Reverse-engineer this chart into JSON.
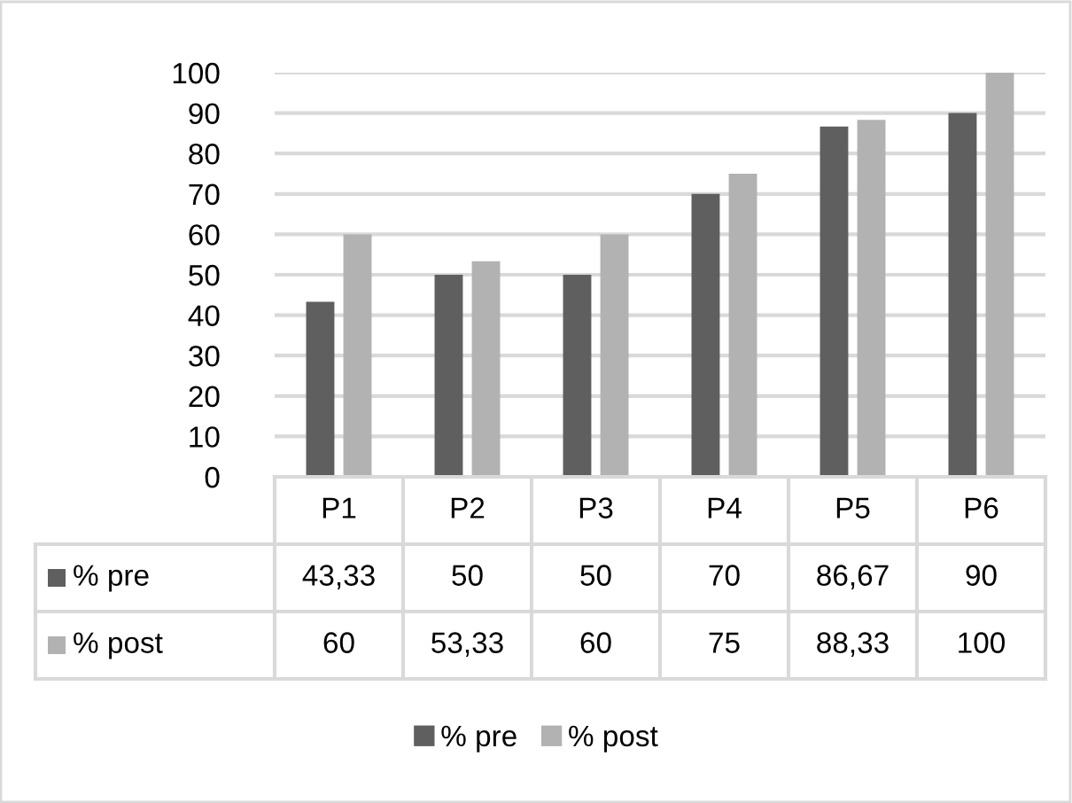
{
  "chart_data": {
    "type": "bar",
    "categories": [
      "P1",
      "P2",
      "P3",
      "P4",
      "P5",
      "P6"
    ],
    "series": [
      {
        "name": "% pre",
        "color": "#5f5f5f",
        "values": [
          43.33,
          50,
          50,
          70,
          86.67,
          90
        ],
        "value_labels": [
          "43,33",
          "50",
          "50",
          "70",
          "86,67",
          "90"
        ]
      },
      {
        "name": "% post",
        "color": "#b2b2b2",
        "values": [
          60,
          53.33,
          60,
          75,
          88.33,
          100
        ],
        "value_labels": [
          "60",
          "53,33",
          "60",
          "75",
          "88,33",
          "100"
        ]
      }
    ],
    "ylim": [
      0,
      100
    ],
    "yticks": [
      0,
      10,
      20,
      30,
      40,
      50,
      60,
      70,
      80,
      90,
      100
    ],
    "grid": "y",
    "legend": "bottom"
  }
}
